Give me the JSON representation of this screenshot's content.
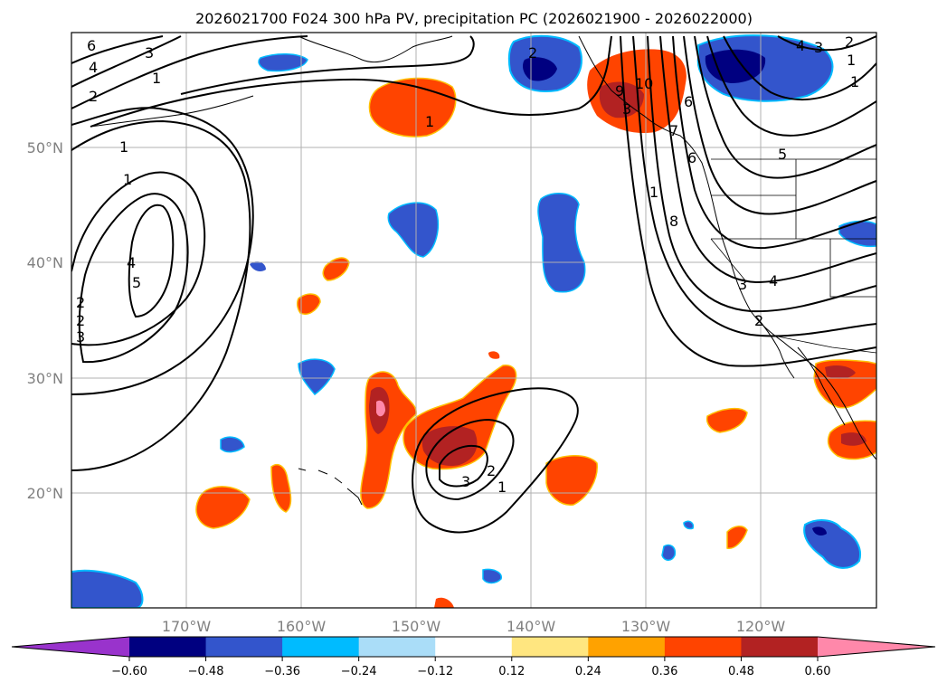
{
  "chart_data": {
    "type": "map",
    "title": "2026021700 F024 300 hPa PV, precipitation PC (2026021900 - 2026022000)",
    "lon_labels": [
      "170°W",
      "160°W",
      "150°W",
      "140°W",
      "130°W",
      "120°W"
    ],
    "lat_labels": [
      "50°N",
      "40°N",
      "30°N",
      "20°N"
    ],
    "lon_range": [
      -180,
      -110
    ],
    "lat_range": [
      10,
      60
    ],
    "colorbar": {
      "ticks": [
        "−0.60",
        "−0.48",
        "−0.36",
        "−0.24",
        "−0.12",
        "0.12",
        "0.24",
        "0.36",
        "0.48",
        "0.60"
      ],
      "colors": [
        "#9933cc",
        "#000080",
        "#3355cc",
        "#00bbff",
        "#aaddf8",
        "#ffffff",
        "#ffe680",
        "#ffa200",
        "#ff4400",
        "#b22222",
        "#ff88aa"
      ],
      "extend": "both"
    },
    "pv_contour_labels": [
      "6",
      "4",
      "3",
      "2",
      "1",
      "1",
      "1",
      "2",
      "3",
      "4",
      "5",
      "1",
      "2",
      "3",
      "2",
      "1",
      "3",
      "2",
      "1",
      "6",
      "9",
      "10",
      "8",
      "7",
      "6",
      "5",
      "4",
      "3",
      "2",
      "1",
      "3",
      "4",
      "2",
      "1"
    ]
  }
}
